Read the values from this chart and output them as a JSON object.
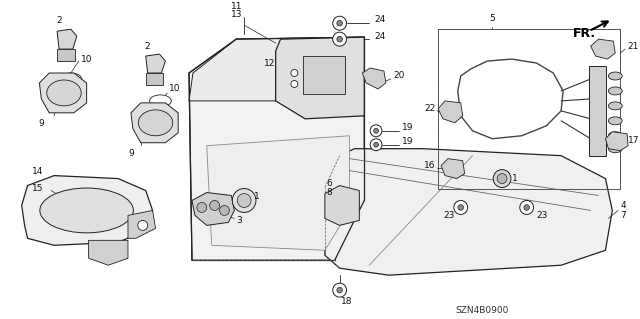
{
  "background_color": "#ffffff",
  "line_color": "#222222",
  "label_color": "#111111",
  "fig_width": 6.4,
  "fig_height": 3.19,
  "dpi": 100,
  "diagram_code": "SZN4B0900"
}
